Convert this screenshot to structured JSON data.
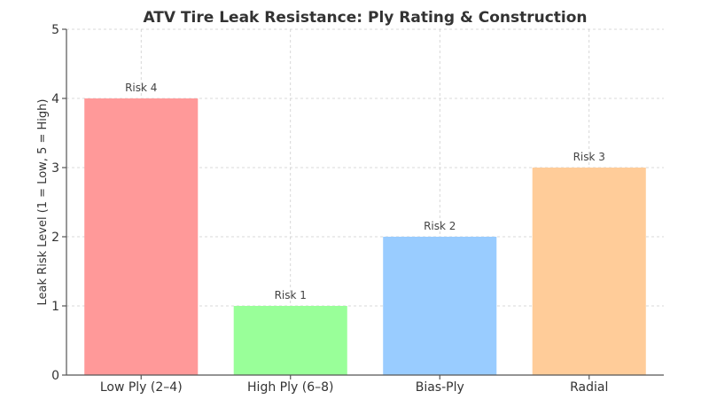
{
  "chart_data": {
    "type": "bar",
    "title": "ATV Tire Leak Resistance: Ply Rating & Construction",
    "xlabel": "",
    "ylabel": "Leak Risk Level (1 = Low, 5 = High)",
    "categories": [
      "Low Ply (2–4)",
      "High Ply (6–8)",
      "Bias-Ply",
      "Radial"
    ],
    "values": [
      4,
      1,
      2,
      3
    ],
    "data_labels": [
      "Risk 4",
      "Risk 1",
      "Risk 2",
      "Risk 3"
    ],
    "colors": [
      "#ff9999",
      "#99ff99",
      "#99ccff",
      "#ffcc99"
    ],
    "ylim": [
      0,
      5
    ],
    "yticks": [
      "0",
      "1",
      "2",
      "3",
      "4",
      "5"
    ],
    "grid": true
  }
}
